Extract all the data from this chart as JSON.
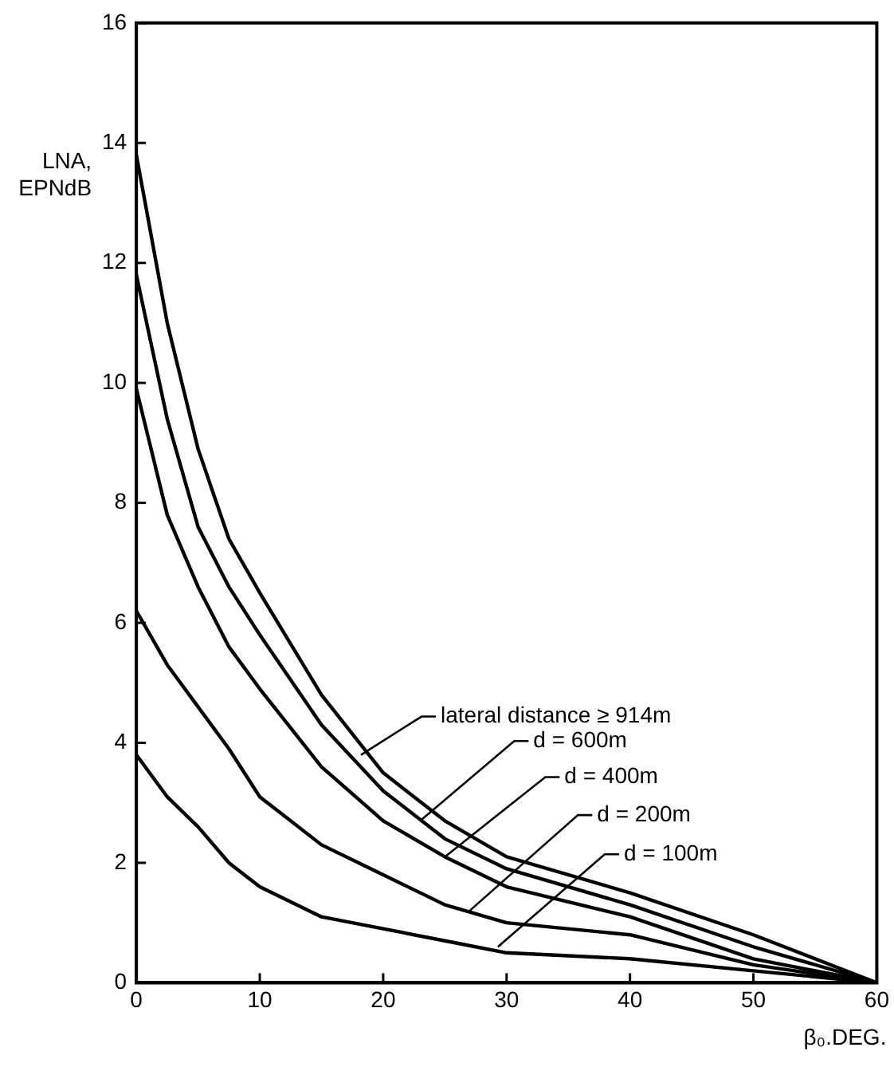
{
  "chart_data": {
    "type": "line",
    "xlabel": "β₀.DEG.",
    "ylabel": "LNA,\nEPNdB",
    "x": [
      0,
      2.5,
      5,
      7.5,
      10,
      15,
      20,
      25,
      30,
      40,
      50,
      60
    ],
    "xlim": [
      0,
      60
    ],
    "xticks": [
      0,
      10,
      20,
      30,
      40,
      50,
      60
    ],
    "ylim": [
      0,
      16
    ],
    "yticks": [
      0,
      2,
      4,
      6,
      8,
      10,
      12,
      14,
      16
    ],
    "grid": false,
    "legend": false,
    "marker": "none",
    "line_style": "solid",
    "series": [
      {
        "color": "#000000",
        "values": [
          13.8,
          11.0,
          8.9,
          7.4,
          6.5,
          4.8,
          3.5,
          2.7,
          2.1,
          1.5,
          0.8,
          0
        ]
      },
      {
        "color": "#000000",
        "values": [
          11.8,
          9.4,
          7.6,
          6.6,
          5.8,
          4.3,
          3.2,
          2.4,
          1.9,
          1.3,
          0.6,
          0
        ]
      },
      {
        "color": "#000000",
        "values": [
          9.9,
          7.8,
          6.6,
          5.6,
          4.9,
          3.6,
          2.7,
          2.1,
          1.6,
          1.1,
          0.4,
          0
        ]
      },
      {
        "color": "#000000",
        "values": [
          6.2,
          5.3,
          4.6,
          3.9,
          3.1,
          2.3,
          1.8,
          1.3,
          1.0,
          0.8,
          0.3,
          0
        ]
      },
      {
        "color": "#000000",
        "values": [
          3.8,
          3.1,
          2.6,
          2.0,
          1.6,
          1.1,
          0.9,
          0.7,
          0.5,
          0.4,
          0.2,
          0
        ]
      }
    ],
    "annotations": [
      {
        "text": "lateral distance ≥ 914m",
        "x": 18.2,
        "y": 3.8
      },
      {
        "text": "d = 600m",
        "x": 23,
        "y": 2.7
      },
      {
        "text": "d = 400m",
        "x": 25,
        "y": 2.1
      },
      {
        "text": "d = 200m",
        "x": 27,
        "y": 1.2
      },
      {
        "text": "d = 100m",
        "x": 29.3,
        "y": 0.6
      }
    ]
  }
}
